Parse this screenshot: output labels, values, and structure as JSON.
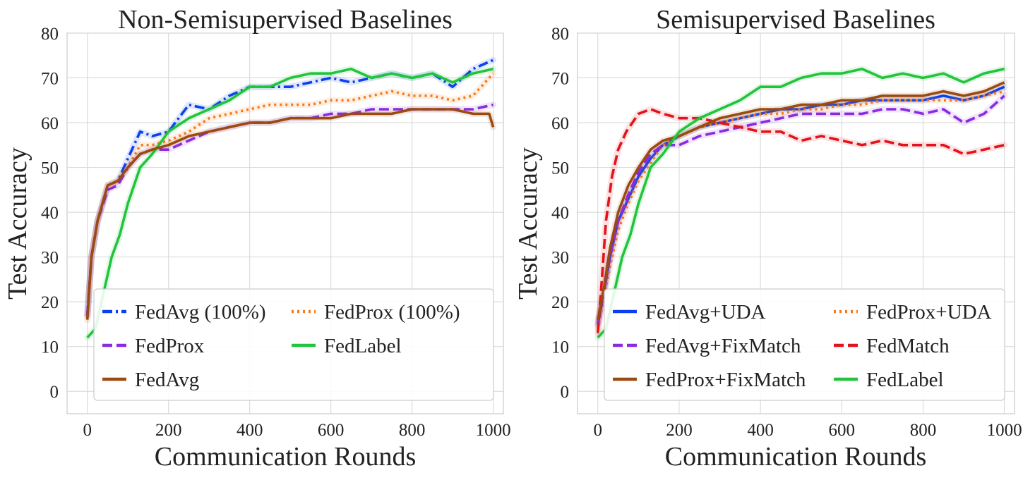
{
  "chart_data": [
    {
      "type": "line",
      "title": "Non-Semisupervised Baselines",
      "xlabel": "Communication Rounds",
      "ylabel": "Test Accuracy",
      "xlim": [
        -50,
        1025
      ],
      "ylim": [
        -5,
        80
      ],
      "xticks": [
        0,
        200,
        400,
        600,
        800,
        1000
      ],
      "yticks": [
        0,
        10,
        20,
        30,
        40,
        50,
        60,
        70,
        80
      ],
      "grid": true,
      "legend": {
        "position": "bottom-right",
        "columns": 2
      },
      "series": [
        {
          "name": "FedAvg (100%)",
          "color": "#0b40f0",
          "dash": "dashdot",
          "x": [
            0,
            10,
            25,
            50,
            75,
            100,
            130,
            160,
            200,
            250,
            300,
            350,
            400,
            450,
            500,
            550,
            600,
            650,
            700,
            750,
            800,
            850,
            900,
            950,
            1000
          ],
          "y": [
            17,
            30,
            38,
            46,
            47,
            52,
            58,
            57,
            58,
            64,
            63,
            66,
            68,
            68,
            68,
            69,
            70,
            69,
            70,
            71,
            70,
            71,
            68,
            72,
            74
          ]
        },
        {
          "name": "FedProx (100%)",
          "color": "#f57a1c",
          "dash": "dotted",
          "x": [
            0,
            10,
            25,
            50,
            75,
            100,
            130,
            160,
            200,
            250,
            300,
            350,
            400,
            450,
            500,
            550,
            600,
            650,
            700,
            750,
            800,
            850,
            900,
            950,
            1000
          ],
          "y": [
            17,
            30,
            38,
            46,
            47,
            50,
            55,
            55,
            56,
            58,
            61,
            62,
            63,
            64,
            64,
            64,
            65,
            65,
            66,
            67,
            66,
            66,
            65,
            66,
            71
          ]
        },
        {
          "name": "FedProx",
          "color": "#8a2be2",
          "dash": "dashed",
          "x": [
            0,
            10,
            25,
            50,
            75,
            100,
            130,
            160,
            200,
            250,
            300,
            350,
            400,
            450,
            500,
            550,
            600,
            650,
            700,
            750,
            800,
            850,
            900,
            950,
            1000
          ],
          "y": [
            17,
            30,
            38,
            45,
            46,
            50,
            53,
            54,
            54,
            56,
            58,
            59,
            60,
            60,
            61,
            61,
            62,
            62,
            63,
            63,
            63,
            63,
            63,
            63,
            64
          ]
        },
        {
          "name": "FedLabel",
          "color": "#22c43c",
          "dash": "solid",
          "x": [
            0,
            20,
            40,
            60,
            80,
            100,
            130,
            160,
            200,
            250,
            300,
            350,
            400,
            450,
            500,
            550,
            600,
            650,
            700,
            750,
            800,
            850,
            900,
            950,
            1000
          ],
          "y": [
            12,
            14,
            22,
            30,
            35,
            42,
            50,
            53,
            58,
            61,
            63,
            65,
            68,
            68,
            70,
            71,
            71,
            72,
            70,
            71,
            70,
            71,
            69,
            71,
            72
          ]
        },
        {
          "name": "FedAvg",
          "color": "#9b4a10",
          "dash": "solid",
          "x": [
            0,
            10,
            25,
            50,
            75,
            100,
            130,
            160,
            200,
            250,
            300,
            350,
            400,
            450,
            500,
            550,
            600,
            650,
            700,
            750,
            800,
            850,
            900,
            950,
            990,
            1000
          ],
          "y": [
            16,
            30,
            38,
            46,
            47,
            50,
            53,
            54,
            55,
            57,
            58,
            59,
            60,
            60,
            61,
            61,
            61,
            62,
            62,
            62,
            63,
            63,
            63,
            62,
            62,
            59
          ]
        }
      ]
    },
    {
      "type": "line",
      "title": "Semisupervised Baselines",
      "xlabel": "Communication Rounds",
      "ylabel": "Test Accuracy",
      "xlim": [
        -50,
        1025
      ],
      "ylim": [
        -5,
        80
      ],
      "xticks": [
        0,
        200,
        400,
        600,
        800,
        1000
      ],
      "yticks": [
        0,
        10,
        20,
        30,
        40,
        50,
        60,
        70,
        80
      ],
      "grid": true,
      "legend": {
        "position": "bottom-right",
        "columns": 2
      },
      "series": [
        {
          "name": "FedAvg+UDA",
          "color": "#0b40f0",
          "dash": "solid",
          "x": [
            0,
            15,
            30,
            50,
            75,
            100,
            130,
            160,
            200,
            250,
            300,
            350,
            400,
            450,
            500,
            550,
            600,
            650,
            700,
            750,
            800,
            850,
            900,
            950,
            1000
          ],
          "y": [
            15,
            22,
            30,
            38,
            43,
            48,
            52,
            55,
            57,
            59,
            60,
            61,
            62,
            63,
            63,
            64,
            64,
            65,
            65,
            65,
            65,
            66,
            65,
            66,
            68
          ]
        },
        {
          "name": "FedProx+UDA",
          "color": "#f57a1c",
          "dash": "dotted",
          "x": [
            0,
            15,
            30,
            50,
            75,
            100,
            130,
            160,
            200,
            250,
            300,
            350,
            400,
            450,
            500,
            550,
            600,
            650,
            700,
            750,
            800,
            850,
            900,
            950,
            1000
          ],
          "y": [
            14,
            21,
            28,
            36,
            42,
            47,
            51,
            55,
            57,
            59,
            60,
            61,
            62,
            62,
            63,
            63,
            64,
            64,
            65,
            65,
            65,
            65,
            65,
            66,
            67
          ]
        },
        {
          "name": "FedAvg+FixMatch",
          "color": "#8a2be2",
          "dash": "dashed",
          "x": [
            0,
            15,
            30,
            50,
            75,
            100,
            130,
            160,
            200,
            250,
            300,
            350,
            400,
            450,
            500,
            550,
            600,
            650,
            700,
            750,
            800,
            850,
            900,
            950,
            1000
          ],
          "y": [
            15,
            22,
            30,
            38,
            44,
            49,
            53,
            55,
            55,
            57,
            58,
            59,
            60,
            61,
            62,
            62,
            62,
            62,
            63,
            63,
            62,
            63,
            60,
            62,
            66
          ]
        },
        {
          "name": "FedMatch",
          "color": "#e3131b",
          "dash": "dashed",
          "x": [
            0,
            10,
            20,
            35,
            50,
            70,
            100,
            130,
            160,
            200,
            250,
            300,
            350,
            400,
            450,
            500,
            550,
            600,
            650,
            700,
            750,
            800,
            850,
            900,
            950,
            1000
          ],
          "y": [
            13,
            25,
            38,
            48,
            54,
            58,
            62,
            63,
            62,
            61,
            61,
            60,
            59,
            58,
            58,
            56,
            57,
            56,
            55,
            56,
            55,
            55,
            55,
            53,
            54,
            55
          ]
        },
        {
          "name": "FedProx+FixMatch",
          "color": "#9b4a10",
          "dash": "solid",
          "x": [
            0,
            15,
            30,
            50,
            75,
            100,
            130,
            160,
            200,
            250,
            300,
            350,
            400,
            450,
            500,
            550,
            600,
            650,
            700,
            750,
            800,
            850,
            900,
            950,
            1000
          ],
          "y": [
            16,
            23,
            32,
            40,
            46,
            50,
            54,
            56,
            57,
            59,
            61,
            62,
            63,
            63,
            64,
            64,
            65,
            65,
            66,
            66,
            66,
            67,
            66,
            67,
            69
          ]
        },
        {
          "name": "FedLabel",
          "color": "#22c43c",
          "dash": "solid",
          "x": [
            0,
            20,
            40,
            60,
            80,
            100,
            130,
            160,
            200,
            250,
            300,
            350,
            400,
            450,
            500,
            550,
            600,
            650,
            700,
            750,
            800,
            850,
            900,
            950,
            1000
          ],
          "y": [
            12,
            14,
            22,
            30,
            35,
            42,
            50,
            53,
            58,
            61,
            63,
            65,
            68,
            68,
            70,
            71,
            71,
            72,
            70,
            71,
            70,
            71,
            69,
            71,
            72
          ]
        }
      ]
    }
  ]
}
